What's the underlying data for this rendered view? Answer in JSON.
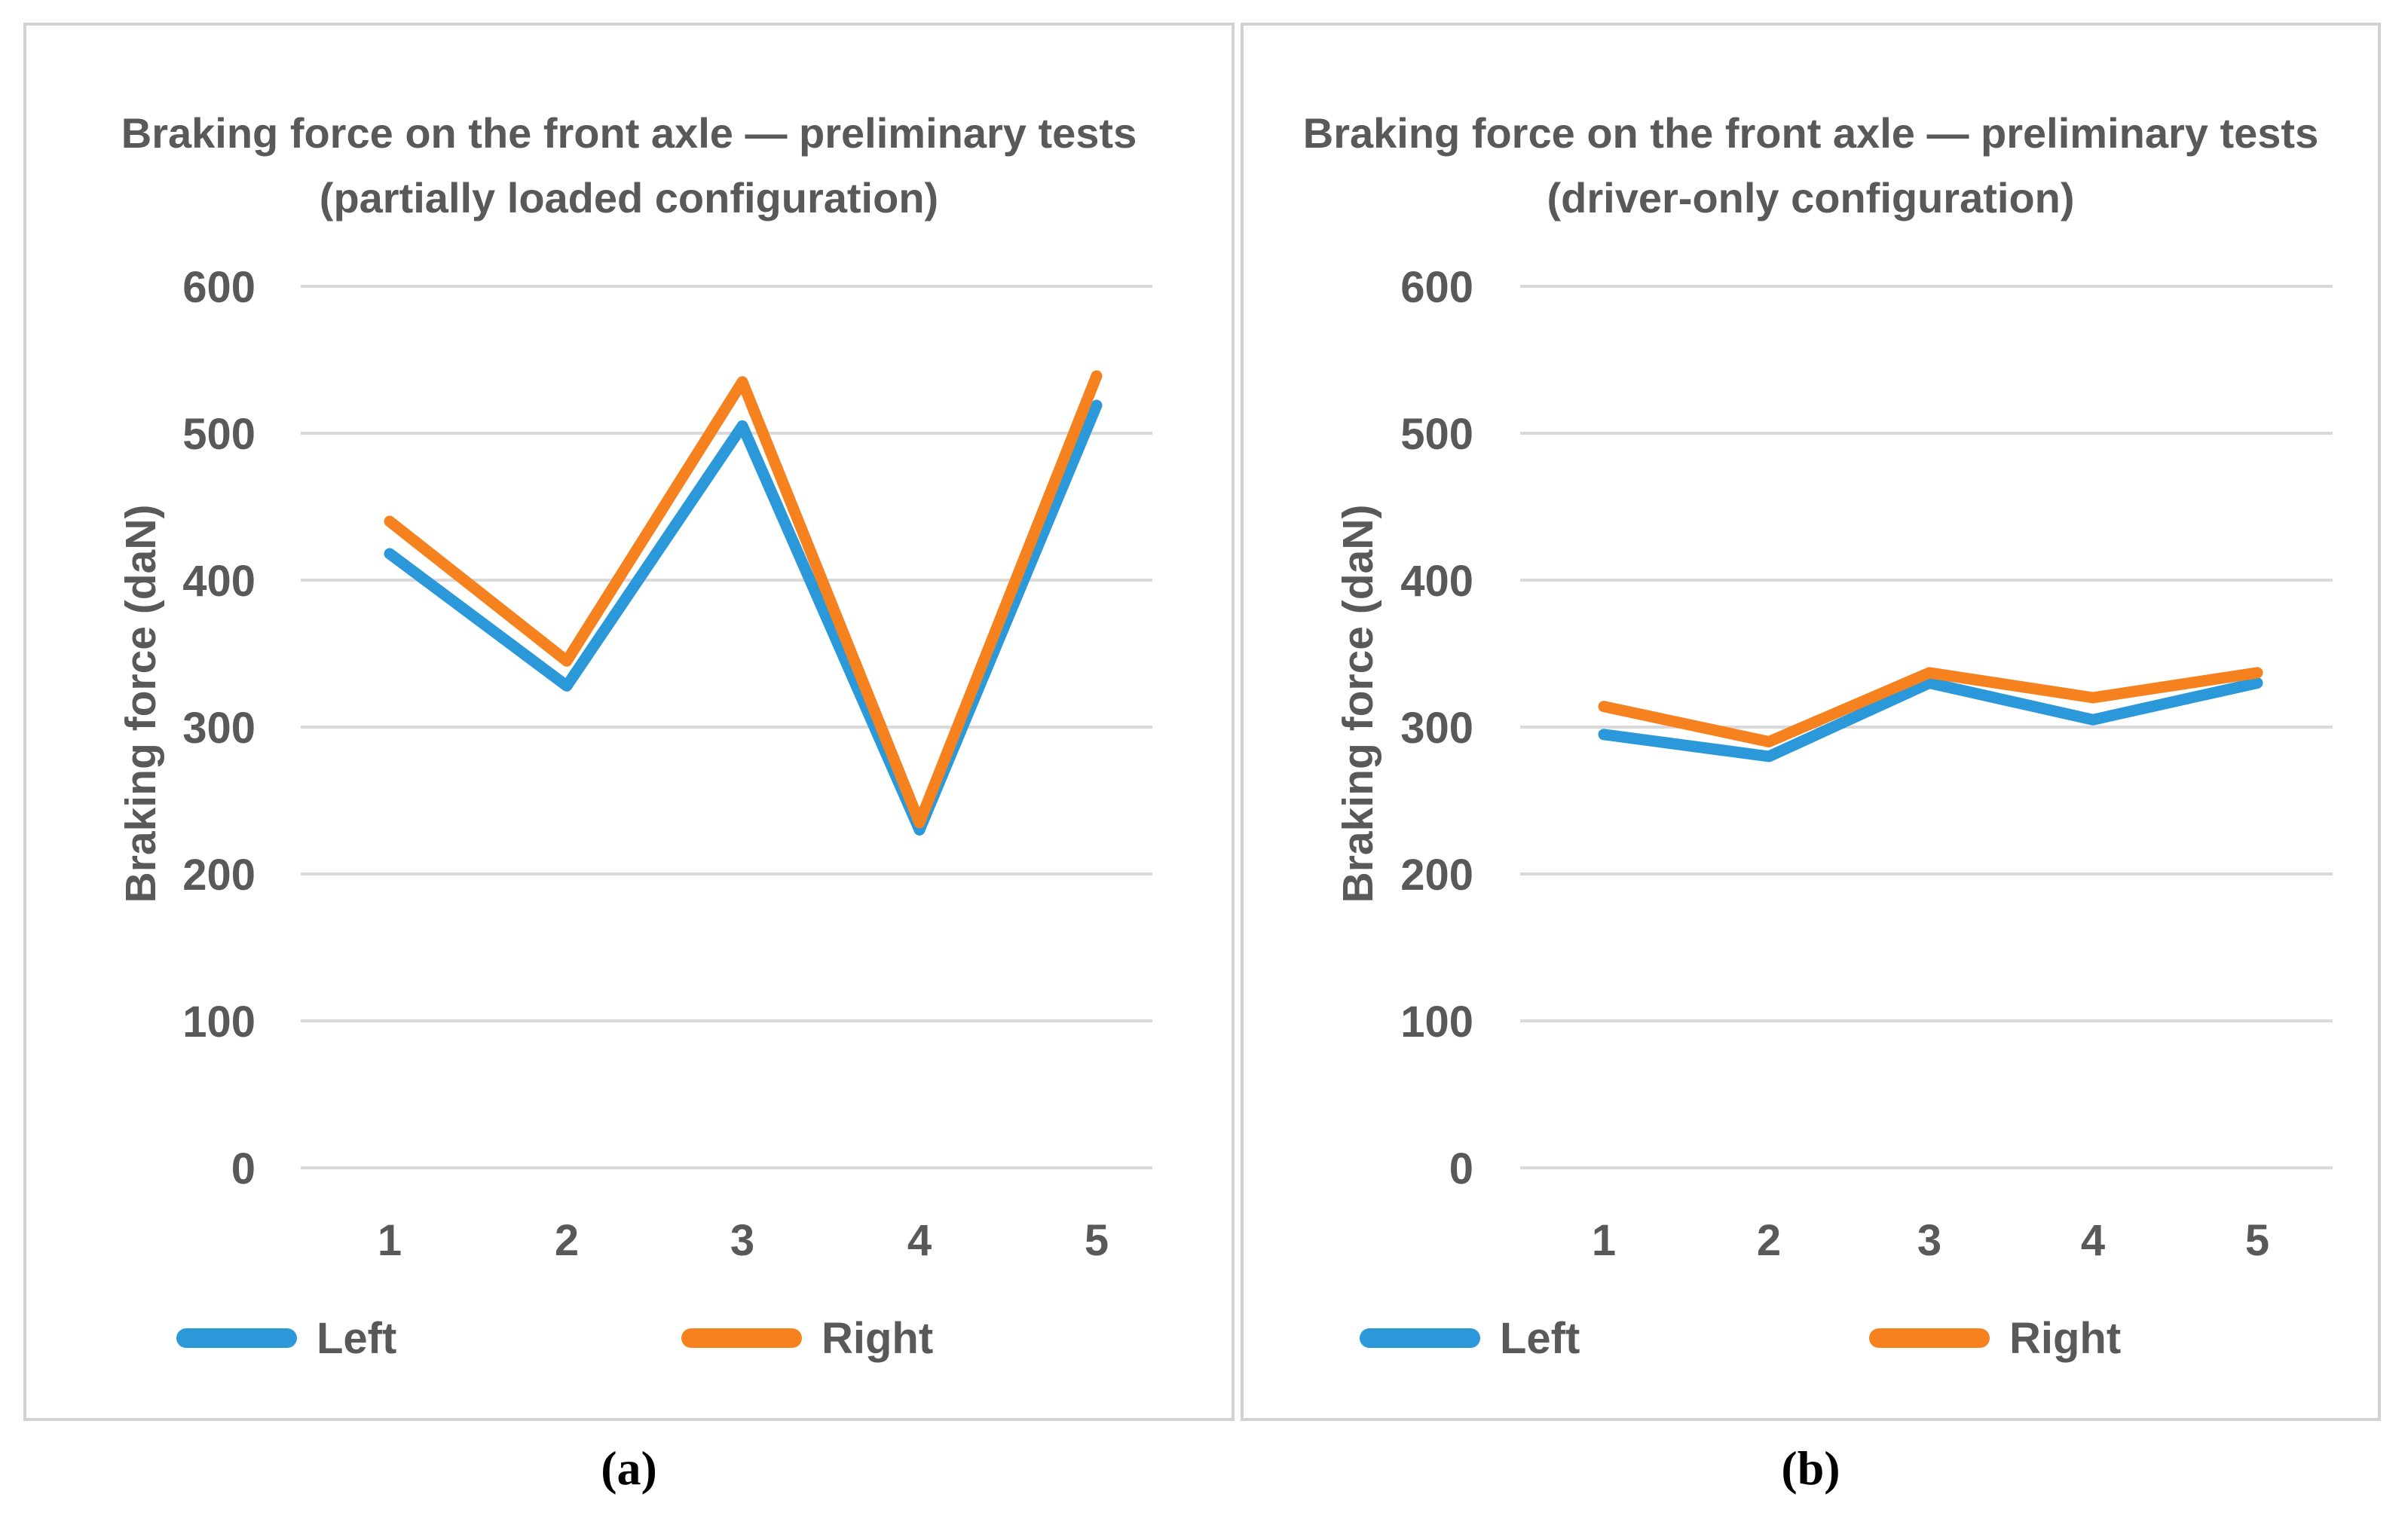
{
  "figure": {
    "panels": [
      {
        "id": "a",
        "title_line1": "Braking force on the front axle — preliminary tests",
        "title_line2": "(partially loaded configuration)",
        "y_axis_label": "Braking force (daN)",
        "caption": "(a)"
      },
      {
        "id": "b",
        "title_line1": "Braking force on the front axle — preliminary tests",
        "title_line2": "(driver-only configuration)",
        "y_axis_label": "Braking force (daN)",
        "caption": "(b)"
      }
    ],
    "colors": {
      "text_gray": "#595959",
      "gridline": "#d9d9d9",
      "panel_border": "#d2d2d2",
      "series_left_blue": "#2b99d9",
      "series_right_orange": "#f6821f"
    }
  },
  "chart_data": [
    {
      "type": "line",
      "title": "Braking force on the front axle — preliminary tests (partially loaded configuration)",
      "xlabel": "",
      "ylabel": "Braking force (daN)",
      "categories": [
        "1",
        "2",
        "3",
        "4",
        "5"
      ],
      "series": [
        {
          "name": "Left",
          "color": "#2b99d9",
          "values": [
            418,
            328,
            505,
            230,
            519
          ]
        },
        {
          "name": "Right",
          "color": "#f6821f",
          "values": [
            440,
            345,
            535,
            235,
            539
          ]
        }
      ],
      "ylim": [
        0,
        600
      ],
      "ytick_step": 100,
      "yticks": [
        0,
        100,
        200,
        300,
        400,
        500,
        600
      ],
      "grid": true,
      "legend_position": "bottom"
    },
    {
      "type": "line",
      "title": "Braking force on the front axle — preliminary tests (driver-only configuration)",
      "xlabel": "",
      "ylabel": "Braking force (daN)",
      "categories": [
        "1",
        "2",
        "3",
        "4",
        "5"
      ],
      "series": [
        {
          "name": "Left",
          "color": "#2b99d9",
          "values": [
            295,
            280,
            330,
            305,
            330
          ]
        },
        {
          "name": "Right",
          "color": "#f6821f",
          "values": [
            314,
            290,
            337,
            320,
            337
          ]
        }
      ],
      "ylim": [
        0,
        600
      ],
      "ytick_step": 100,
      "yticks": [
        0,
        100,
        200,
        300,
        400,
        500,
        600
      ],
      "grid": true,
      "legend_position": "bottom"
    }
  ]
}
